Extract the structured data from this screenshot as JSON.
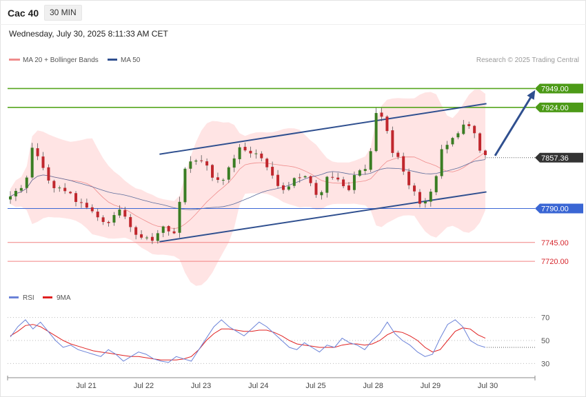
{
  "header": {
    "instrument": "Cac 40",
    "timeframe": "30 MIN",
    "datetime": "Wednesday, July 30, 2025 8:11:33 AM CET"
  },
  "legend": {
    "ma20_bb": "MA 20 + Bollinger Bands",
    "ma50": "MA 50",
    "credit": "Research © 2025 Trading Central",
    "rsi": "RSI",
    "rsi_ma": "9MA"
  },
  "colors": {
    "bullish": "#3a7d23",
    "bearish": "#c0272d",
    "ma20": "#ef8c8c",
    "bb_fill": "#ffe1e1",
    "ma50": "#5a6a9a",
    "channel": "#2f4f8f",
    "resistance": "#55a51c",
    "pivot": "#3a66d4",
    "support": "#f08080",
    "rsi": "#6a82d8",
    "rsi_ma": "#e02020",
    "current": "#333333"
  },
  "chart_data": [
    {
      "type": "candlestick",
      "timeframe": "30 MIN",
      "x_labels": [
        "Jul 21",
        "Jul 22",
        "Jul 23",
        "Jul 24",
        "Jul 25",
        "Jul 28",
        "Jul 29",
        "Jul 30"
      ],
      "ylim": [
        7690,
        7975
      ],
      "close_path": [
        7810,
        7815,
        7822,
        7868,
        7858,
        7832,
        7817,
        7820,
        7812,
        7802,
        7798,
        7786,
        7780,
        7775,
        7772,
        7790,
        7778,
        7760,
        7754,
        7749,
        7752,
        7768,
        7758,
        7762,
        7835,
        7852,
        7858,
        7848,
        7833,
        7823,
        7838,
        7852,
        7870,
        7868,
        7862,
        7852,
        7838,
        7818,
        7815,
        7824,
        7836,
        7829,
        7818,
        7800,
        7836,
        7828,
        7822,
        7812,
        7840,
        7836,
        7858,
        7924,
        7904,
        7864,
        7860,
        7832,
        7812,
        7798,
        7802,
        7826,
        7872,
        7880,
        7890,
        7901,
        7898,
        7874,
        7857
      ],
      "price_levels": [
        {
          "label": "7949.00",
          "value": 7949,
          "kind": "resistance"
        },
        {
          "label": "7924.00",
          "value": 7924,
          "kind": "resistance"
        },
        {
          "label": "7857.36",
          "value": 7857.36,
          "kind": "current"
        },
        {
          "label": "7790.00",
          "value": 7790,
          "kind": "pivot"
        },
        {
          "label": "7745.00",
          "value": 7745,
          "kind": "support"
        },
        {
          "label": "7720.00",
          "value": 7720,
          "kind": "support"
        }
      ],
      "indicators": [
        "MA 20 + Bollinger Bands",
        "MA 50"
      ],
      "trend_channel": {
        "upper": [
          [
            2.3,
            7862
          ],
          [
            8.0,
            7929
          ]
        ],
        "lower": [
          [
            2.3,
            7746
          ],
          [
            8.0,
            7812
          ]
        ]
      },
      "projection_arrow": {
        "from": [
          8.15,
          7860
        ],
        "to": [
          8.85,
          7947
        ]
      }
    },
    {
      "type": "line",
      "series": [
        {
          "name": "RSI"
        },
        {
          "name": "9MA"
        }
      ],
      "y_ticks": [
        30,
        50,
        70
      ],
      "ylim": [
        20,
        80
      ],
      "rsi_path": [
        53,
        62,
        68,
        60,
        66,
        58,
        50,
        44,
        46,
        42,
        40,
        38,
        36,
        42,
        38,
        32,
        36,
        40,
        38,
        34,
        32,
        31,
        36,
        34,
        32,
        42,
        52,
        62,
        68,
        62,
        58,
        54,
        60,
        66,
        62,
        56,
        50,
        44,
        42,
        48,
        44,
        40,
        46,
        44,
        52,
        48,
        46,
        42,
        50,
        56,
        66,
        56,
        50,
        46,
        40,
        36,
        38,
        52,
        64,
        68,
        62,
        50,
        46,
        44
      ],
      "ma_path": [
        54,
        58,
        63,
        64,
        62,
        58,
        54,
        50,
        47,
        45,
        43,
        41,
        40,
        39,
        38,
        37,
        36,
        36,
        35,
        34,
        33,
        33,
        33,
        34,
        36,
        42,
        50,
        56,
        60,
        60,
        59,
        58,
        58,
        59,
        59,
        57,
        54,
        50,
        47,
        46,
        45,
        44,
        44,
        44,
        46,
        47,
        47,
        46,
        47,
        50,
        55,
        58,
        57,
        54,
        50,
        44,
        40,
        42,
        50,
        58,
        61,
        60,
        55,
        52
      ]
    }
  ]
}
